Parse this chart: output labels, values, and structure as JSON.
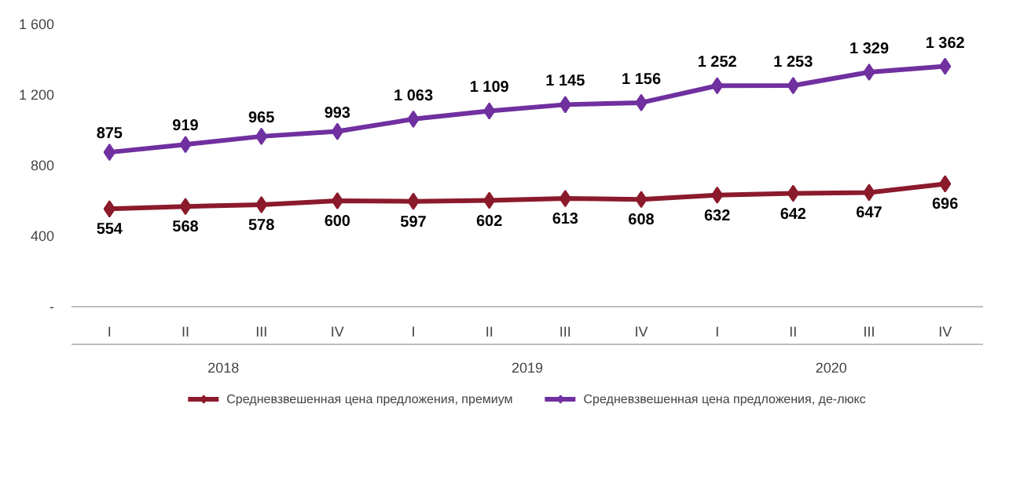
{
  "chart_data": {
    "type": "line",
    "categories": [
      "I",
      "II",
      "III",
      "IV",
      "I",
      "II",
      "III",
      "IV",
      "I",
      "II",
      "III",
      "IV"
    ],
    "series": [
      {
        "name": "Средневзвешенная цена предложения, премиум",
        "color": "#8b1a2b",
        "values": [
          554,
          568,
          578,
          600,
          597,
          602,
          613,
          608,
          632,
          642,
          647,
          696
        ]
      },
      {
        "name": "Средневзвешенная цена предложения, де-люкс",
        "color": "#7030a0",
        "values": [
          875,
          919,
          965,
          993,
          1063,
          1109,
          1145,
          1156,
          1252,
          1253,
          1329,
          1362
        ]
      }
    ],
    "annotations": [
      "2018",
      "2019",
      "2020"
    ],
    "ylim": [
      0,
      1600
    ],
    "yticks": [
      {
        "value": 0,
        "label": "-"
      },
      400,
      800,
      {
        "value": 1200,
        "label": "1 200"
      },
      {
        "value": 1600,
        "label": "1 600"
      }
    ],
    "data_labels": true,
    "marker": "diamond",
    "line_style": "solid",
    "grid": false,
    "legend": "bottom"
  }
}
